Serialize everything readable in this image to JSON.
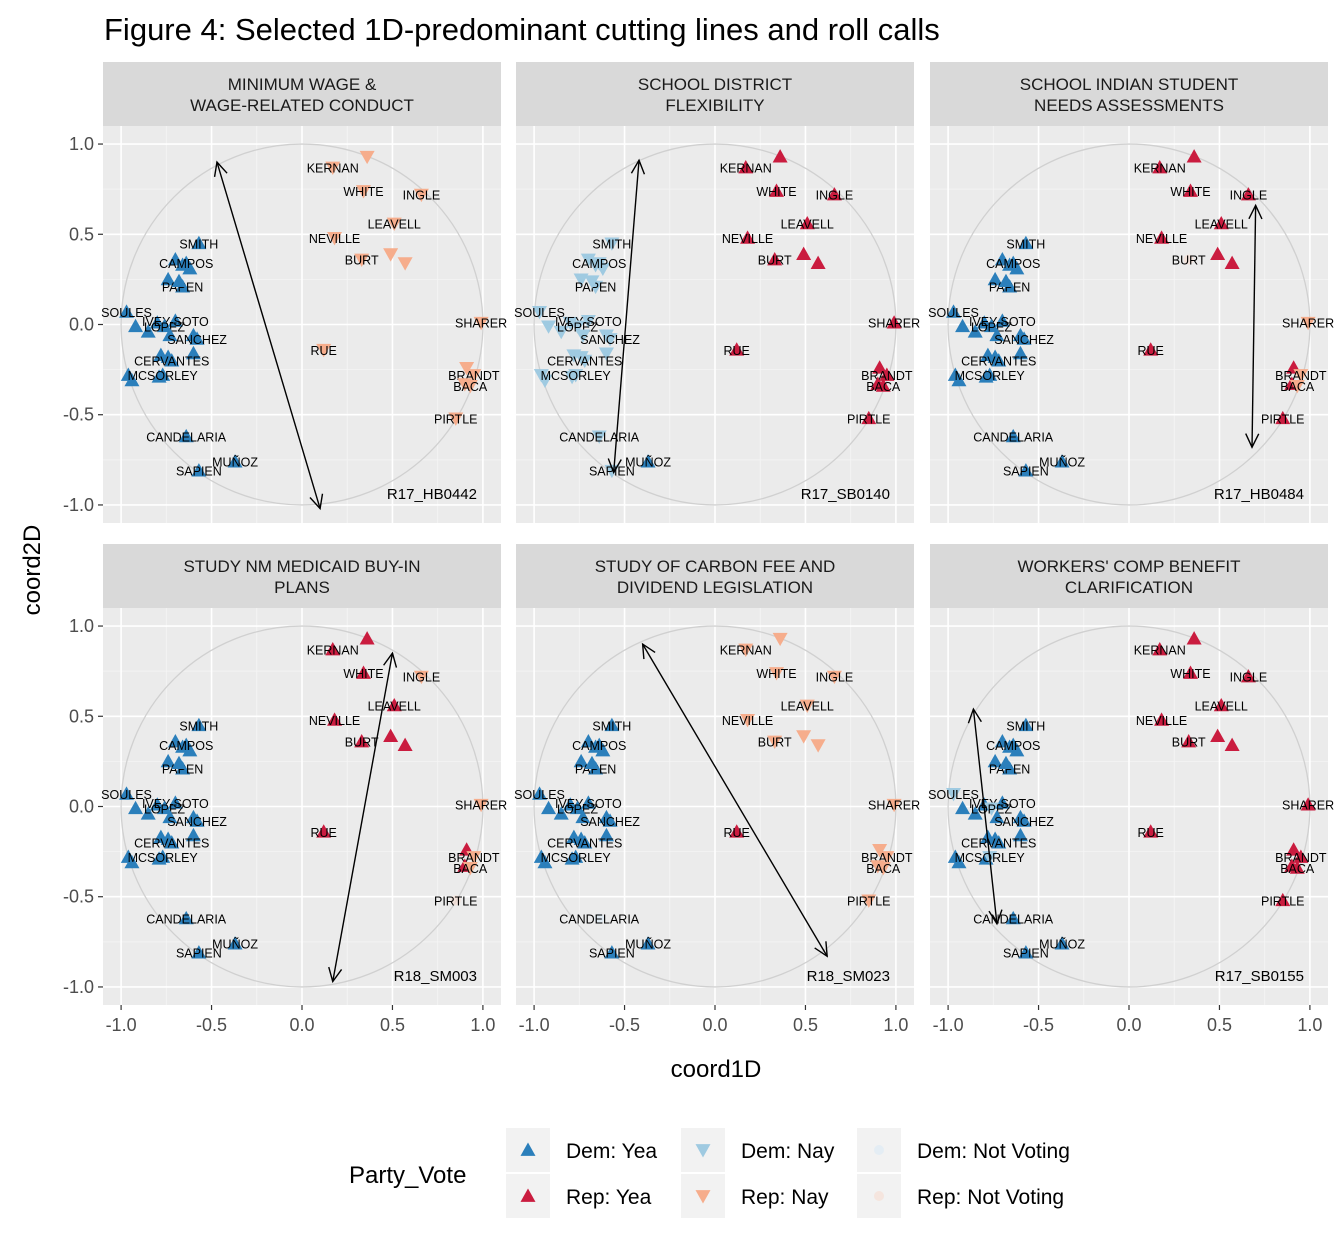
{
  "chart_data": {
    "type": "scatter",
    "title": "Figure 4: Selected 1D-predominant cutting lines and roll calls",
    "xlabel": "coord1D",
    "ylabel": "coord2D",
    "xlim": [
      -1.1,
      1.1
    ],
    "ylim": [
      -1.1,
      1.1
    ],
    "x_ticks": [
      "-1.0",
      "-0.5",
      "0.0",
      "0.5",
      "1.0"
    ],
    "y_ticks": [
      "1.0",
      "0.5",
      "0.0",
      "-0.5",
      "-1.0"
    ],
    "grid": true,
    "unit_circle": true,
    "legend": {
      "title": "Party_Vote",
      "position": "bottom",
      "entries": [
        {
          "key": "DY",
          "label": "Dem: Yea",
          "color": "#2b7fbb",
          "shape": "up",
          "opacity": 1
        },
        {
          "key": "RY",
          "label": "Rep: Yea",
          "color": "#ca1c3f",
          "shape": "up",
          "opacity": 1
        },
        {
          "key": "DN",
          "label": "Dem: Nay",
          "color": "#9fcae1",
          "shape": "down",
          "opacity": 1
        },
        {
          "key": "RN",
          "label": "Rep: Nay",
          "color": "#f6ad8c",
          "shape": "down",
          "opacity": 1
        },
        {
          "key": "DX",
          "label": "Dem: Not Voting",
          "color": "#dbeaf5",
          "shape": "circle",
          "opacity": 0.6
        },
        {
          "key": "RX",
          "label": "Rep: Not Voting",
          "color": "#f6dcd0",
          "shape": "circle",
          "opacity": 0.6
        }
      ]
    },
    "members": [
      {
        "name": "SMITH",
        "party": "D",
        "x": -0.57,
        "y": 0.45
      },
      {
        "name": "",
        "party": "D",
        "x": -0.66,
        "y": 0.33
      },
      {
        "name": "",
        "party": "D",
        "x": -0.62,
        "y": 0.31
      },
      {
        "name": "",
        "party": "D",
        "x": -0.7,
        "y": 0.36
      },
      {
        "name": "CAMPOS",
        "party": "D",
        "x": -0.64,
        "y": 0.34
      },
      {
        "name": "",
        "party": "D",
        "x": -0.74,
        "y": 0.25
      },
      {
        "name": "PAPEN",
        "party": "D",
        "x": -0.66,
        "y": 0.21
      },
      {
        "name": "",
        "party": "D",
        "x": -0.68,
        "y": 0.24
      },
      {
        "name": "SOULES",
        "party": "D",
        "x": -0.97,
        "y": 0.07
      },
      {
        "name": "",
        "party": "D",
        "x": -0.92,
        "y": -0.01
      },
      {
        "name": "",
        "party": "D",
        "x": -0.85,
        "y": -0.04
      },
      {
        "name": "",
        "party": "D",
        "x": -0.8,
        "y": 0.01
      },
      {
        "name": "IVEY-SOTO",
        "party": "D",
        "x": -0.7,
        "y": 0.02
      },
      {
        "name": "LOPEZ",
        "party": "D",
        "x": -0.76,
        "y": -0.01
      },
      {
        "name": "",
        "party": "D",
        "x": -0.73,
        "y": -0.06
      },
      {
        "name": "",
        "party": "D",
        "x": -0.6,
        "y": -0.06
      },
      {
        "name": "SANCHEZ",
        "party": "D",
        "x": -0.58,
        "y": -0.08
      },
      {
        "name": "",
        "party": "D",
        "x": -0.78,
        "y": -0.17
      },
      {
        "name": "",
        "party": "D",
        "x": -0.74,
        "y": -0.18
      },
      {
        "name": "",
        "party": "D",
        "x": -0.6,
        "y": -0.16
      },
      {
        "name": "CERVANTES",
        "party": "D",
        "x": -0.72,
        "y": -0.2
      },
      {
        "name": "",
        "party": "D",
        "x": -0.96,
        "y": -0.28
      },
      {
        "name": "",
        "party": "D",
        "x": -0.94,
        "y": -0.31
      },
      {
        "name": "",
        "party": "D",
        "x": -0.79,
        "y": -0.29
      },
      {
        "name": "MCSORLEY",
        "party": "D",
        "x": -0.77,
        "y": -0.28
      },
      {
        "name": "CANDELARIA",
        "party": "D",
        "x": -0.64,
        "y": -0.62
      },
      {
        "name": "MUÑOZ",
        "party": "D",
        "x": -0.37,
        "y": -0.76
      },
      {
        "name": "SAPIEN",
        "party": "D",
        "x": -0.57,
        "y": -0.81
      },
      {
        "name": "KERNAN",
        "party": "R",
        "x": 0.17,
        "y": 0.87
      },
      {
        "name": "",
        "party": "R",
        "x": 0.36,
        "y": 0.93
      },
      {
        "name": "WHITE",
        "party": "R",
        "x": 0.34,
        "y": 0.74
      },
      {
        "name": "INGLE",
        "party": "R",
        "x": 0.66,
        "y": 0.72
      },
      {
        "name": "LEAVELL",
        "party": "R",
        "x": 0.51,
        "y": 0.56
      },
      {
        "name": "NEVILLE",
        "party": "R",
        "x": 0.18,
        "y": 0.48
      },
      {
        "name": "",
        "party": "R",
        "x": 0.49,
        "y": 0.39
      },
      {
        "name": "BURT",
        "party": "R",
        "x": 0.33,
        "y": 0.36
      },
      {
        "name": "",
        "party": "R",
        "x": 0.57,
        "y": 0.34
      },
      {
        "name": "SHARER",
        "party": "R",
        "x": 0.99,
        "y": 0.01
      },
      {
        "name": "RUE",
        "party": "R",
        "x": 0.12,
        "y": -0.14
      },
      {
        "name": "",
        "party": "R",
        "x": 0.91,
        "y": -0.24
      },
      {
        "name": "BRANDT",
        "party": "R",
        "x": 0.95,
        "y": -0.28
      },
      {
        "name": "",
        "party": "R",
        "x": 0.9,
        "y": -0.33
      },
      {
        "name": "BACA",
        "party": "R",
        "x": 0.93,
        "y": -0.34
      },
      {
        "name": "PIRTLE",
        "party": "R",
        "x": 0.85,
        "y": -0.52
      }
    ],
    "panels": [
      {
        "title_line1": "MINIMUM WAGE &",
        "title_line2": "WAGE-RELATED CONDUCT",
        "roll_call": "R17_HB0442",
        "cutting_line": {
          "x1": -0.47,
          "y1": 0.9,
          "x2": 0.1,
          "y2": -1.02
        },
        "votes": {
          "D": "Y",
          "R": "N"
        }
      },
      {
        "title_line1": "SCHOOL DISTRICT",
        "title_line2": "FLEXIBILITY",
        "roll_call": "R17_SB0140",
        "cutting_line": {
          "x1": -0.42,
          "y1": 0.91,
          "x2": -0.56,
          "y2": -0.82
        },
        "votes": {
          "D": "N",
          "R": "Y",
          "exceptions": {
            "CANDELARIA": "N",
            "MUÑOZ": "Y"
          }
        }
      },
      {
        "title_line1": "SCHOOL INDIAN STUDENT",
        "title_line2": "NEEDS ASSESSMENTS",
        "roll_call": "R17_HB0484",
        "cutting_line": {
          "x1": 0.7,
          "y1": 0.66,
          "x2": 0.68,
          "y2": -0.68
        },
        "votes": {
          "D": "Y",
          "R": "Y",
          "exceptions": {
            "SHARER": "N",
            "BRANDT": "N",
            "BACA": "N",
            "": "Y",
            "BURT": "X"
          }
        }
      },
      {
        "title_line1": "STUDY NM MEDICAID BUY-IN",
        "title_line2": "PLANS",
        "roll_call": "R18_SM003",
        "cutting_line": {
          "x1": 0.5,
          "y1": 0.85,
          "x2": 0.17,
          "y2": -0.97
        },
        "votes": {
          "D": "Y",
          "R": "Y",
          "exceptions": {
            "INGLE": "N",
            "SHARER": "N",
            "BRANDT": "N",
            "BACA": "N",
            "PIRTLE": "X"
          }
        }
      },
      {
        "title_line1": "STUDY OF CARBON FEE AND",
        "title_line2": "DIVIDEND LEGISLATION",
        "roll_call": "R18_SM023",
        "cutting_line": {
          "x1": -0.4,
          "y1": 0.9,
          "x2": 0.62,
          "y2": -0.83
        },
        "votes": {
          "D": "Y",
          "R": "N",
          "exceptions": {
            "RUE": "Y",
            "CANDELARIA": "X"
          }
        }
      },
      {
        "title_line1": "WORKERS' COMP BENEFIT",
        "title_line2": "CLARIFICATION",
        "roll_call": "R17_SB0155",
        "cutting_line": {
          "x1": -0.86,
          "y1": 0.54,
          "x2": -0.73,
          "y2": -0.65
        },
        "votes": {
          "D": "Y",
          "R": "Y",
          "exceptions": {
            "SOULES": "N",
            "LOPEZ": "N",
            "MCSORLEY": "N"
          }
        }
      }
    ]
  }
}
